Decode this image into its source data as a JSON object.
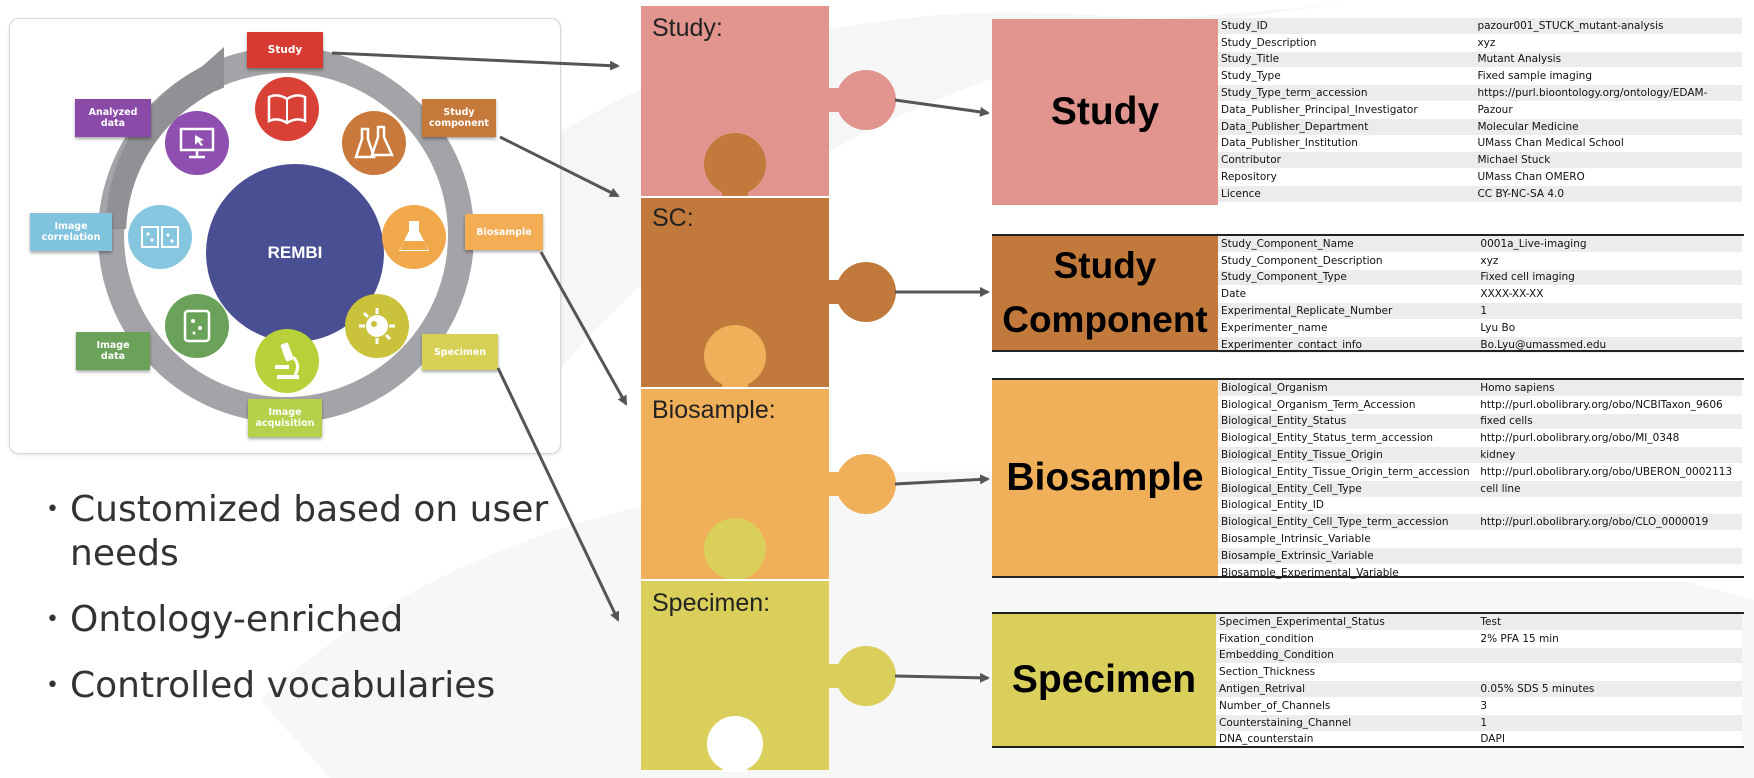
{
  "colors": {
    "study": "#e2948f",
    "study_component": "#c27a3c",
    "biosample": "#f0b05a",
    "specimen": "#d9cf5a",
    "rembi_center": "#4a4f93"
  },
  "rembi": {
    "center": "REMBI",
    "labels": {
      "study": "Study",
      "study_component": "Study\ncomponent",
      "biosample": "Biosample",
      "specimen": "Specimen",
      "image_acquisition": "Image\nacquisition",
      "image_data": "Image\ndata",
      "image_correlation": "Image\ncorrelation",
      "analyzed_data": "Analyzed\ndata"
    },
    "icons": [
      "book-icon",
      "flasks-icon",
      "beaker-icon",
      "cell-icon",
      "microscope-icon",
      "petri-dish-icon",
      "image-compare-icon",
      "monitor-icon"
    ]
  },
  "bullets": [
    "Customized based on user needs",
    "Ontology-enriched",
    "Controlled vocabularies"
  ],
  "puzzle": {
    "study": "Study:",
    "sc": "SC:",
    "biosample": "Biosample:",
    "specimen": "Specimen:"
  },
  "blocks": {
    "study": {
      "title": "Study",
      "rows": [
        [
          "Study_ID",
          "pazour001_STUCK_mutant-analysis"
        ],
        [
          "Study_Description",
          "xyz"
        ],
        [
          "Study_Title",
          "Mutant Analysis"
        ],
        [
          "Study_Type",
          "Fixed sample imaging"
        ],
        [
          "Study_Type_term_accession",
          "https://purl.bioontology.org/ontology/EDAM-"
        ],
        [
          "Data_Publisher_Principal_Investigator",
          "Pazour"
        ],
        [
          "Data_Publisher_Department",
          "Molecular Medicine"
        ],
        [
          "Data_Publisher_Institution",
          "UMass Chan Medical School"
        ],
        [
          "Contributor",
          "Michael Stuck"
        ],
        [
          "Repository",
          "UMass Chan OMERO"
        ],
        [
          "Licence",
          "CC BY-NC-SA 4.0"
        ]
      ]
    },
    "study_component": {
      "title": "Study Component",
      "rows": [
        [
          "Study_Component_Name",
          " 0001a_Live-imaging"
        ],
        [
          "Study_Component_Description",
          "xyz"
        ],
        [
          "Study_Component_Type",
          "Fixed cell imaging"
        ],
        [
          "Date",
          "XXXX-XX-XX"
        ],
        [
          "Experimental_Replicate_Number",
          "1"
        ],
        [
          "Experimenter_name",
          "Lyu Bo"
        ],
        [
          "Experimenter_contact_info",
          "Bo.Lyu@umassmed.edu"
        ]
      ]
    },
    "biosample": {
      "title": "Biosample",
      "rows": [
        [
          "Biological_Organism",
          "Homo sapiens"
        ],
        [
          "Biological_Organism_Term_Accession",
          "http://purl.obolibrary.org/obo/NCBITaxon_9606"
        ],
        [
          "Biological_Entity_Status",
          "fixed cells"
        ],
        [
          "Biological_Entity_Status_term_accession",
          "http://purl.obolibrary.org/obo/MI_0348"
        ],
        [
          "Biological_Entity_Tissue_Origin",
          "kidney"
        ],
        [
          "Biological_Entity_Tissue_Origin_term_accession",
          "http://purl.obolibrary.org/obo/UBERON_0002113"
        ],
        [
          "Biological_Entity_Cell_Type",
          "cell line"
        ],
        [
          "Biological_Entity_ID",
          ""
        ],
        [
          "Biological_Entity_Cell_Type_term_accession",
          "http://purl.obolibrary.org/obo/CLO_0000019"
        ],
        [
          "Biosample_Intrinsic_Variable",
          ""
        ],
        [
          "Biosample_Extrinsic_Variable",
          ""
        ],
        [
          "Biosample_Experimental_Variable",
          ""
        ]
      ]
    },
    "specimen": {
      "title": "Specimen",
      "rows": [
        [
          "Specimen_Experimental_Status",
          "Test"
        ],
        [
          "Fixation_condition",
          "2% PFA 15 min"
        ],
        [
          "Embedding_Condition",
          ""
        ],
        [
          "Section_Thickness",
          ""
        ],
        [
          "Antigen_Retrival",
          "0.05% SDS 5 minutes"
        ],
        [
          "Number_of_Channels",
          "3"
        ],
        [
          "Counterstaining_Channel",
          "1"
        ],
        [
          "DNA_counterstain",
          "DAPI"
        ]
      ]
    }
  }
}
